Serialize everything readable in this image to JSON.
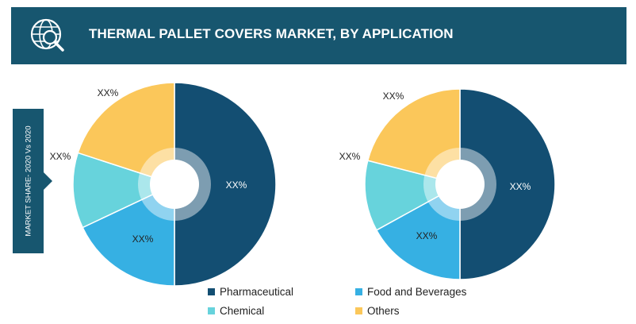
{
  "header": {
    "title": "THERMAL PALLET COVERS MARKET, BY APPLICATION",
    "icon": "globe-magnifier-icon"
  },
  "sidebar": {
    "label": "MARKET SHARE- 2020 Vs 2020"
  },
  "colors": {
    "header_bg": "#17566f",
    "pharmaceutical": "#134e72",
    "food_and_beverages": "#36b0e3",
    "chemical": "#67d3dc",
    "others": "#fbc75a"
  },
  "legend": [
    {
      "label": "Pharmaceutical",
      "color": "#134e72"
    },
    {
      "label": "Food and Beverages",
      "color": "#36b0e3"
    },
    {
      "label": "Chemical",
      "color": "#67d3dc"
    },
    {
      "label": "Others",
      "color": "#fbc75a"
    }
  ],
  "chart_data": [
    {
      "type": "pie",
      "categories": [
        "Pharmaceutical",
        "Food and Beverages",
        "Chemical",
        "Others"
      ],
      "values": [
        50,
        18,
        12,
        20
      ],
      "labels": [
        "XX%",
        "XX%",
        "XX%",
        "XX%"
      ]
    },
    {
      "type": "pie",
      "categories": [
        "Pharmaceutical",
        "Food and Beverages",
        "Chemical",
        "Others"
      ],
      "values": [
        50,
        17,
        12,
        21
      ],
      "labels": [
        "XX%",
        "XX%",
        "XX%",
        "XX%"
      ]
    }
  ]
}
